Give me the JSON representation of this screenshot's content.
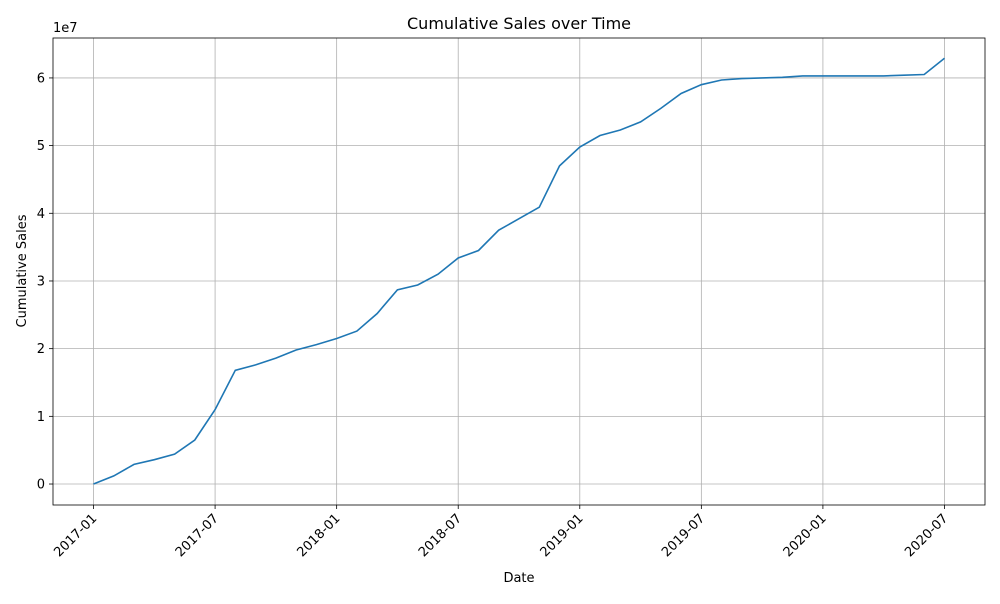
{
  "chart_data": {
    "type": "line",
    "title": "Cumulative Sales over Time",
    "x_label": "Date",
    "y_label": "Cumulative Sales",
    "y_offset_label": "1e7",
    "color": "#1f77b4",
    "grid": true,
    "x": [
      "2017-01",
      "2017-02",
      "2017-03",
      "2017-04",
      "2017-05",
      "2017-06",
      "2017-07",
      "2017-08",
      "2017-09",
      "2017-10",
      "2017-11",
      "2017-12",
      "2018-01",
      "2018-02",
      "2018-03",
      "2018-04",
      "2018-05",
      "2018-06",
      "2018-07",
      "2018-08",
      "2018-09",
      "2018-10",
      "2018-11",
      "2018-12",
      "2019-01",
      "2019-02",
      "2019-03",
      "2019-04",
      "2019-05",
      "2019-06",
      "2019-07",
      "2019-08",
      "2019-09",
      "2019-10",
      "2019-11",
      "2019-12",
      "2020-01",
      "2020-02",
      "2020-03",
      "2020-04",
      "2020-05",
      "2020-06",
      "2020-07"
    ],
    "values": [
      0,
      1200000,
      2900000,
      3600000,
      4400000,
      6500000,
      11000000,
      16800000,
      17600000,
      18600000,
      19800000,
      20600000,
      21500000,
      22600000,
      25200000,
      28700000,
      29400000,
      31000000,
      33400000,
      34500000,
      37500000,
      39200000,
      40900000,
      47000000,
      49800000,
      51500000,
      52300000,
      53500000,
      55500000,
      57700000,
      59000000,
      59700000,
      59900000,
      60000000,
      60100000,
      60300000,
      60300000,
      60300000,
      60300000,
      60300000,
      60400000,
      60500000,
      62900000
    ],
    "xlim": [
      "2016-11",
      "2020-09"
    ],
    "xticks": [
      "2017-01",
      "2017-07",
      "2018-01",
      "2018-07",
      "2019-01",
      "2019-07",
      "2020-01",
      "2020-07"
    ],
    "ylim": [
      -3100000,
      65900000
    ],
    "yticks": [
      {
        "value": 0,
        "label": "0"
      },
      {
        "value": 10000000,
        "label": "1"
      },
      {
        "value": 20000000,
        "label": "2"
      },
      {
        "value": 30000000,
        "label": "3"
      },
      {
        "value": 40000000,
        "label": "4"
      },
      {
        "value": 50000000,
        "label": "5"
      },
      {
        "value": 60000000,
        "label": "6"
      }
    ]
  }
}
